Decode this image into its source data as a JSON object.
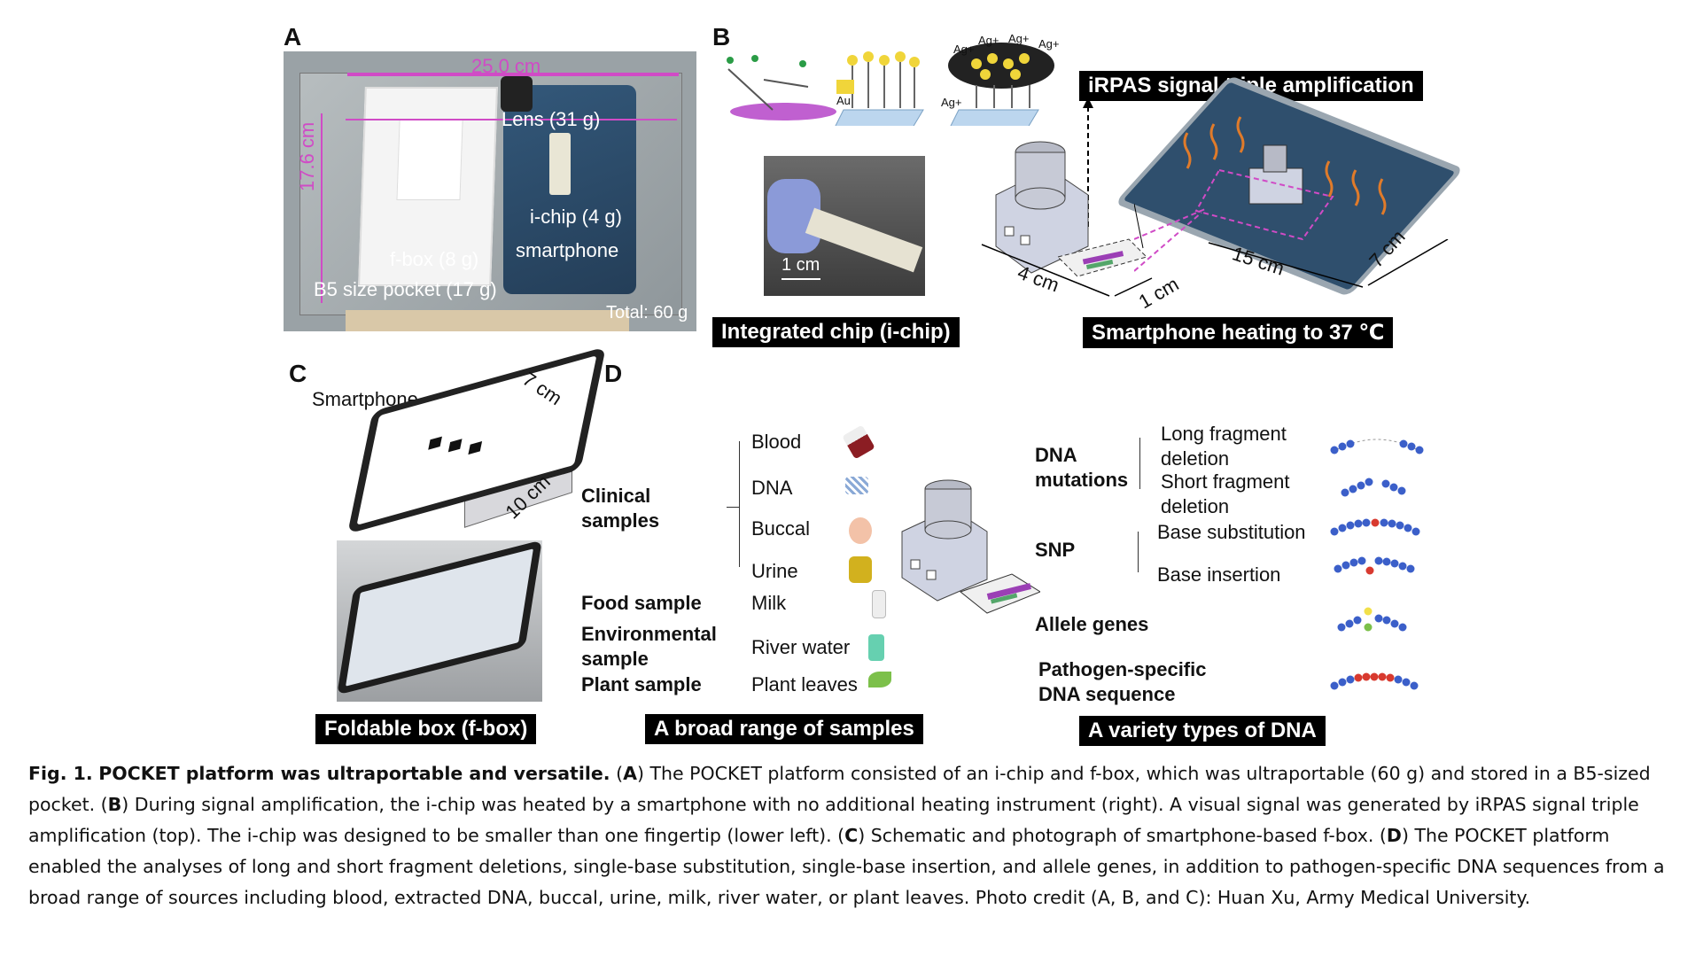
{
  "panels": {
    "A": {
      "letter": "A",
      "width_label": "25.0 cm",
      "height_label": "17.6 cm",
      "lens": "Lens (31 g)",
      "ichip": "i-chip (4 g)",
      "smartphone": "smartphone",
      "fbox": "f-box (8 g)",
      "pocket": "B5 size pocket (17 g)",
      "total": "Total: 60 g"
    },
    "B": {
      "letter": "B",
      "au": "Au",
      "ag": "Ag+",
      "amplification_title": "iRPAS signal triple amplification",
      "scale": "1 cm",
      "chip_title": "Integrated chip (i-chip)",
      "heating_title": "Smartphone heating to 37 ℃",
      "dim_4cm": "4 cm",
      "dim_1cm": "1 cm",
      "dim_15cm": "15 cm",
      "dim_7cm": "7 cm"
    },
    "C": {
      "letter": "C",
      "smartphone": "Smartphone",
      "dim_7cm": "7 cm",
      "dim_10cm": "10 cm",
      "title": "Foldable box (f-box)"
    },
    "D": {
      "letter": "D",
      "clinical": "Clinical samples",
      "clinical_items": [
        "Blood",
        "DNA",
        "Buccal",
        "Urine"
      ],
      "food_label": "Food sample",
      "food_item": "Milk",
      "env_label": "Environmental sample",
      "env_item": "River water",
      "plant_label": "Plant sample",
      "plant_item": "Plant leaves",
      "dna_mutations": "DNA mutations",
      "long_deletion": "Long fragment deletion",
      "short_deletion": "Short fragment deletion",
      "snp": "SNP",
      "base_sub": "Base substitution",
      "base_ins": "Base insertion",
      "allele": "Allele genes",
      "pathogen": "Pathogen-specific DNA sequence",
      "samples_title": "A broad range of  samples",
      "dna_title": "A variety types of DNA"
    }
  },
  "caption": {
    "fig_label": "Fig. 1.",
    "fig_title": "POCKET platform was ultraportable and versatile.",
    "A": "A",
    "A_text": ") The POCKET platform consisted of an i-chip and f-box, which was ultraportable (60 g) and stored in a B5-sized pocket. (",
    "B": "B",
    "B_text": ") During signal amplification, the i-chip was heated by a smartphone with no additional heating instrument (right). A visual signal was generated by iRPAS signal triple amplification (top). The i-chip was designed to be smaller than one fingertip (lower left). (",
    "C": "C",
    "C_text": ") Schematic and photograph of smartphone-based f-box. (",
    "D": "D",
    "D_text": ") The POCKET platform enabled the analyses of long and short fragment deletions, single-base substitution, single-base insertion, and allele genes, in addition to pathogen-specific DNA sequences from a broad range of sources including blood, extracted DNA, buccal, urine, milk, river water, or plant leaves. Photo credit (A, B, and C): Huan Xu, Army Medical University."
  },
  "colors": {
    "accent_magenta": "#d04bc6",
    "phone_blue": "#2f4f6d",
    "dna_blue": "#3b5fc9",
    "dna_red": "#d83a2f"
  }
}
